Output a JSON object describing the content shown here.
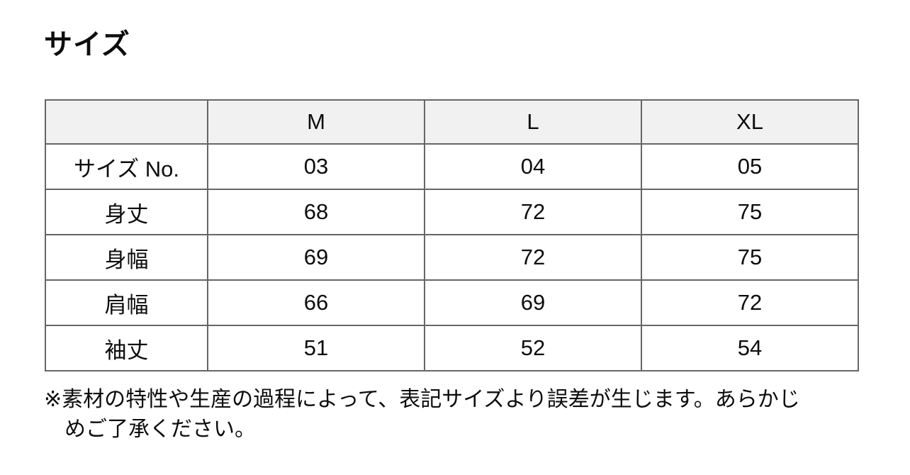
{
  "section": {
    "title": "サイズ"
  },
  "table": {
    "columns": [
      "",
      "M",
      "L",
      "XL"
    ],
    "rows": [
      {
        "label": "サイズ No.",
        "values": [
          "03",
          "04",
          "05"
        ]
      },
      {
        "label": "身丈",
        "values": [
          "68",
          "72",
          "75"
        ]
      },
      {
        "label": "身幅",
        "values": [
          "69",
          "72",
          "75"
        ]
      },
      {
        "label": "肩幅",
        "values": [
          "66",
          "69",
          "72"
        ]
      },
      {
        "label": "袖丈",
        "values": [
          "51",
          "52",
          "54"
        ]
      }
    ]
  },
  "note": {
    "lines": [
      "※素材の特性や生産の過程によって、表記サイズより誤差が生じます。あらかじ",
      "めご了承ください。"
    ],
    "full_text": "※素材の特性や生産の過程によって、表記サイズより誤差が生じます。あらかじめご了承ください。"
  },
  "colors": {
    "border": "#666666",
    "header_bg": "#f1f1f1",
    "text": "#111111",
    "page_bg": "#ffffff"
  }
}
